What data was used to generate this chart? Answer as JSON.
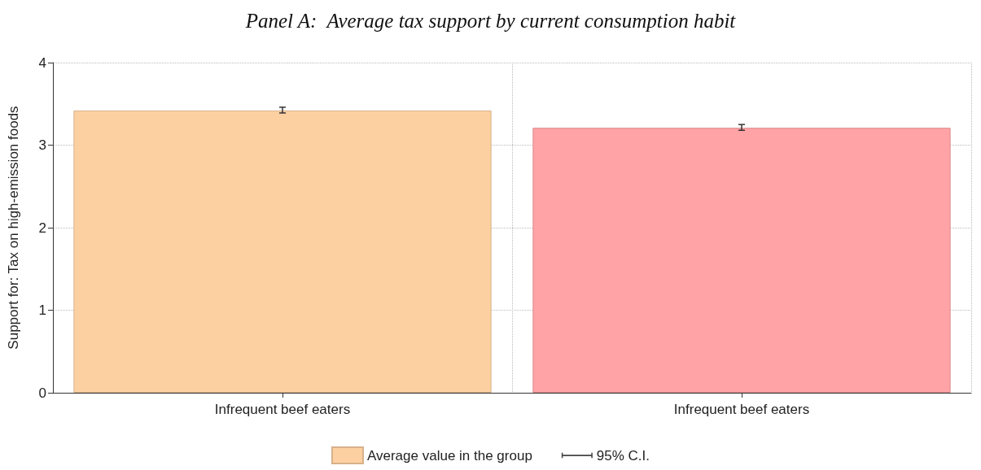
{
  "chart_data": {
    "type": "bar",
    "title": "Panel A:  Average tax support by current consumption habit",
    "ylabel": "Support for: Tax on high-emission foods",
    "categories": [
      "Infrequent beef eaters",
      "Infrequent beef eaters"
    ],
    "series": [
      {
        "name": "Average value in the group",
        "color": "#fdd0a2",
        "colors": [
          "#fdd0a2",
          "#ffa3a6"
        ],
        "values": [
          3.42,
          3.21
        ],
        "errors": [
          [
            3.39,
            3.46
          ],
          [
            3.18,
            3.25
          ]
        ]
      }
    ],
    "annotations": [
      "95% C.I."
    ],
    "ylim": [
      0,
      4
    ],
    "yticks": [
      0,
      1,
      2,
      3,
      4
    ],
    "grid": true,
    "legend": "bottom"
  }
}
